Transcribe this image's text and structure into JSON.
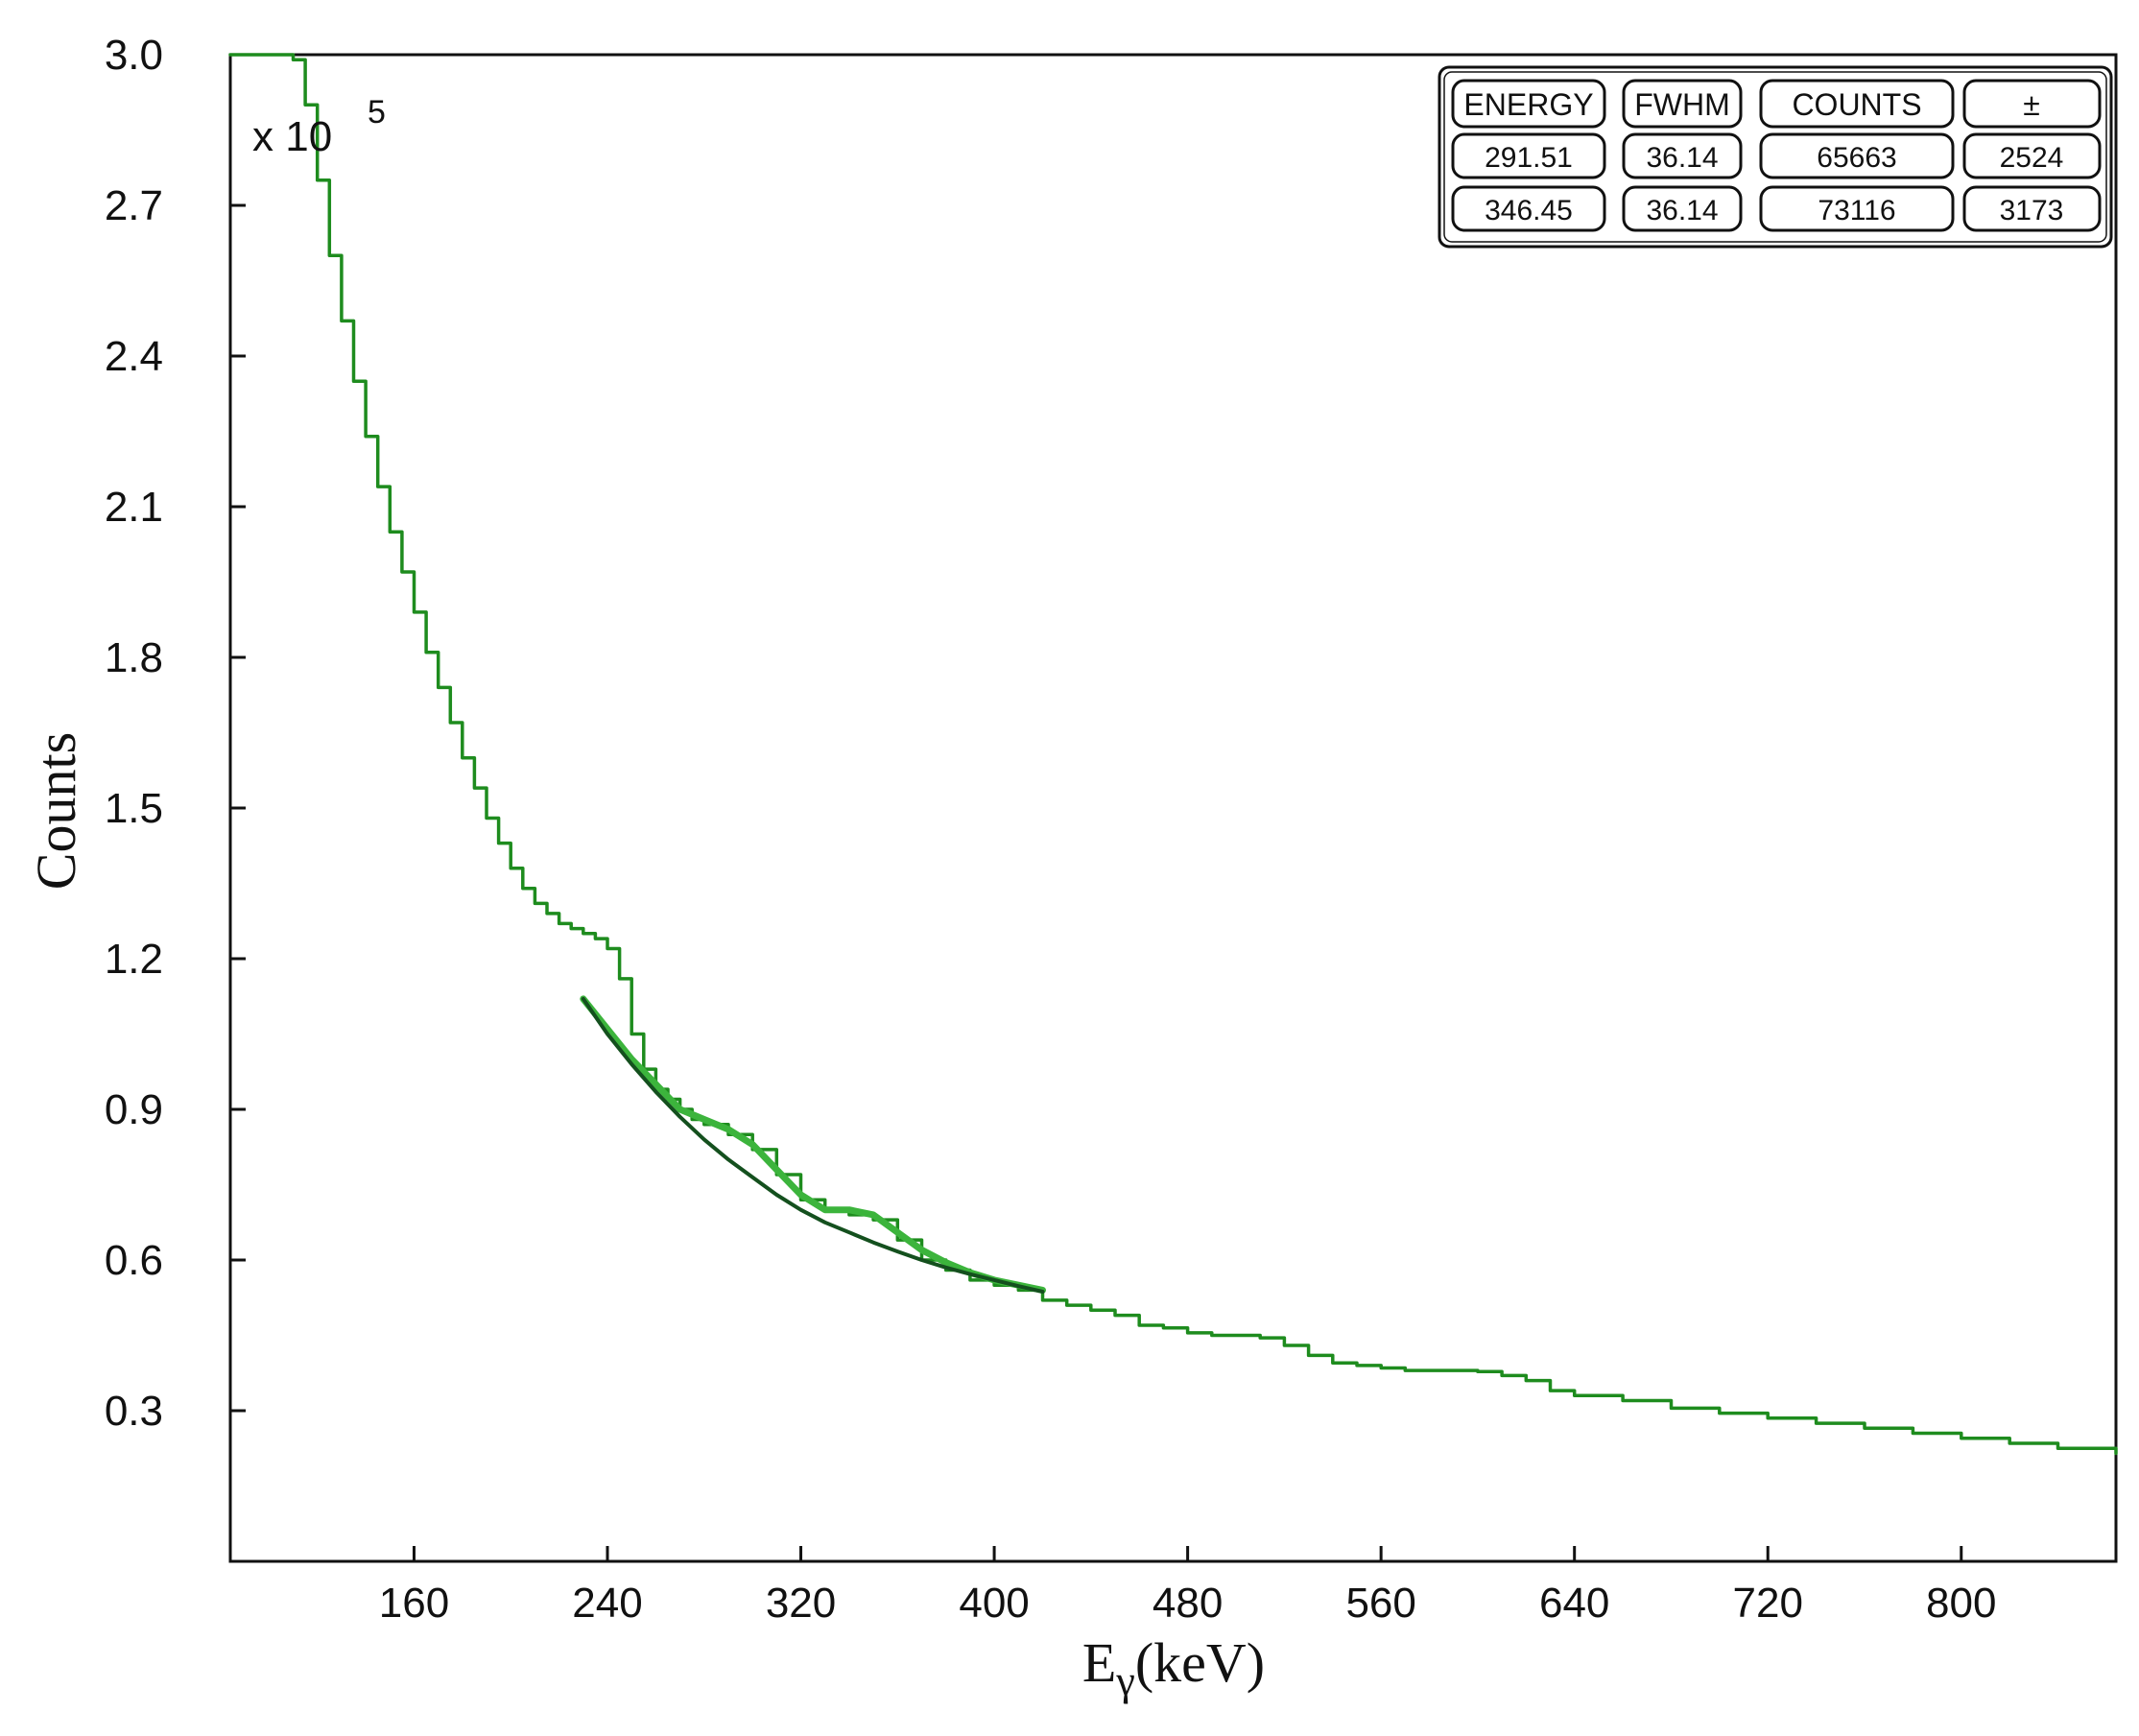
{
  "chart_data": {
    "type": "line",
    "xlabel": "E",
    "xlabel_sub": "γ",
    "xlabel_unit": "(keV)",
    "ylabel": "Counts",
    "multiplier_prefix": "x 10",
    "multiplier_exp": "5",
    "xlim": [
      84,
      864
    ],
    "ylim": [
      0,
      3.0
    ],
    "xticks": [
      160,
      240,
      320,
      400,
      480,
      560,
      640,
      720,
      800
    ],
    "xtick_labels": [
      "160",
      "240",
      "320",
      "400",
      "480",
      "560",
      "640",
      "720",
      "800"
    ],
    "yticks": [
      0.3,
      0.6,
      0.9,
      1.2,
      1.5,
      1.8,
      2.1,
      2.4,
      2.7,
      3.0
    ],
    "ytick_labels": [
      "0.3",
      "0.6",
      "0.9",
      "1.2",
      "1.5",
      "1.8",
      "2.1",
      "2.4",
      "2.7",
      "3.0"
    ],
    "colors": {
      "spectrum": "#1e8c1e",
      "fit": "#3cb43c",
      "background": "#14501e"
    },
    "series": [
      {
        "role": "spectrum",
        "x": [
          84,
          105,
          110,
          115,
          120,
          125,
          130,
          135,
          140,
          145,
          150,
          155,
          160,
          165,
          170,
          175,
          180,
          185,
          190,
          195,
          200,
          205,
          210,
          215,
          220,
          225,
          230,
          235,
          240,
          245,
          250,
          255,
          260,
          265,
          270,
          275,
          280,
          290,
          300,
          310,
          320,
          330,
          340,
          350,
          360,
          370,
          380,
          390,
          400,
          410,
          420,
          430,
          440,
          450,
          460,
          470,
          480,
          490,
          500,
          510,
          520,
          530,
          540,
          550,
          560,
          570,
          580,
          590,
          600,
          610,
          620,
          630,
          640,
          660,
          680,
          700,
          720,
          740,
          760,
          780,
          800,
          820,
          840,
          864
        ],
        "y": [
          3.0,
          3.0,
          2.99,
          2.9,
          2.75,
          2.6,
          2.47,
          2.35,
          2.24,
          2.14,
          2.05,
          1.97,
          1.89,
          1.81,
          1.74,
          1.67,
          1.6,
          1.54,
          1.48,
          1.43,
          1.38,
          1.34,
          1.31,
          1.29,
          1.27,
          1.26,
          1.25,
          1.24,
          1.22,
          1.16,
          1.05,
          0.98,
          0.94,
          0.92,
          0.9,
          0.88,
          0.87,
          0.85,
          0.82,
          0.77,
          0.72,
          0.7,
          0.69,
          0.68,
          0.64,
          0.6,
          0.58,
          0.56,
          0.55,
          0.54,
          0.52,
          0.51,
          0.5,
          0.49,
          0.47,
          0.465,
          0.455,
          0.45,
          0.45,
          0.445,
          0.43,
          0.41,
          0.395,
          0.39,
          0.385,
          0.38,
          0.38,
          0.38,
          0.378,
          0.37,
          0.36,
          0.34,
          0.33,
          0.32,
          0.305,
          0.295,
          0.285,
          0.275,
          0.265,
          0.255,
          0.245,
          0.235,
          0.225,
          0.215
        ]
      },
      {
        "role": "fit",
        "x": [
          230,
          240,
          250,
          260,
          270,
          280,
          290,
          300,
          310,
          320,
          330,
          340,
          350,
          360,
          370,
          380,
          390,
          400,
          410,
          420
        ],
        "y": [
          1.12,
          1.06,
          1.0,
          0.95,
          0.9,
          0.88,
          0.86,
          0.83,
          0.78,
          0.73,
          0.7,
          0.7,
          0.69,
          0.655,
          0.62,
          0.595,
          0.575,
          0.56,
          0.55,
          0.54
        ]
      },
      {
        "role": "background",
        "x": [
          230,
          240,
          250,
          260,
          270,
          280,
          290,
          300,
          310,
          320,
          330,
          340,
          350,
          360,
          370,
          380,
          390,
          400,
          410,
          420
        ],
        "y": [
          1.12,
          1.05,
          0.99,
          0.935,
          0.885,
          0.84,
          0.8,
          0.765,
          0.73,
          0.7,
          0.675,
          0.655,
          0.635,
          0.617,
          0.6,
          0.585,
          0.572,
          0.56,
          0.548,
          0.537
        ]
      }
    ],
    "table": {
      "headers": [
        "ENERGY",
        "FWHM",
        "COUNTS",
        "±"
      ],
      "rows": [
        [
          "291.51",
          "36.14",
          "65663",
          "2524"
        ],
        [
          "346.45",
          "36.14",
          "73116",
          "3173"
        ]
      ]
    }
  }
}
